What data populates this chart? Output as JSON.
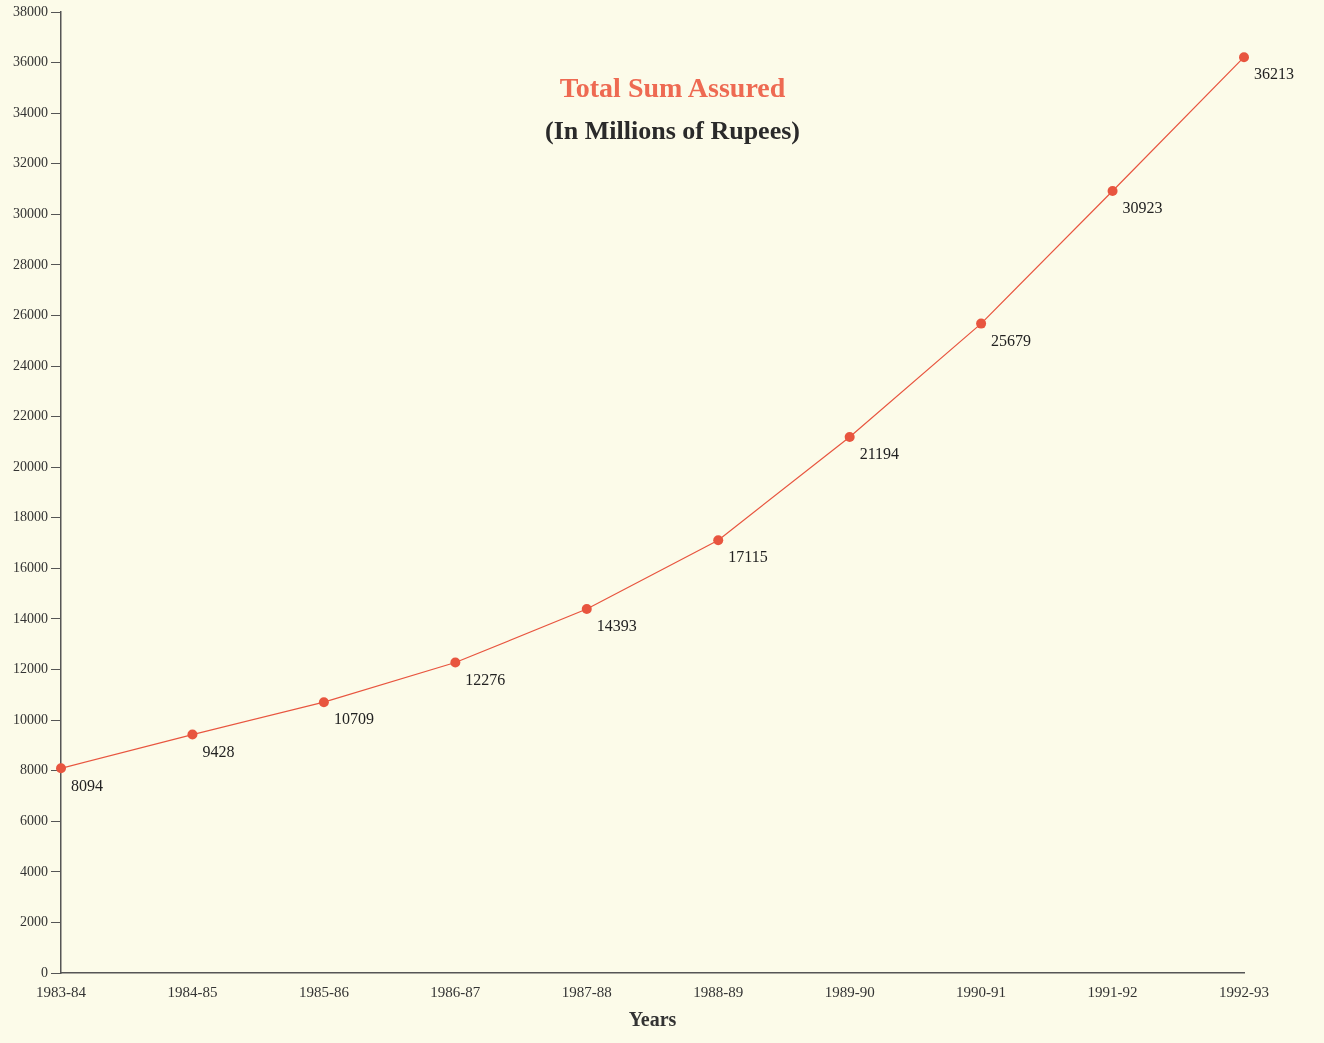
{
  "chart_data": {
    "type": "line",
    "title": "Total Sum Assured",
    "subtitle": "(In Millions of Rupees)",
    "xlabel": "Years",
    "categories": [
      "1983-84",
      "1984-85",
      "1985-86",
      "1986-87",
      "1987-88",
      "1988-89",
      "1989-90",
      "1990-91",
      "1991-92",
      "1992-93"
    ],
    "series": [
      {
        "color": "#e8553f",
        "values": [
          8094,
          9428,
          10709,
          12276,
          14393,
          17115,
          21194,
          25679,
          30923,
          36213
        ]
      }
    ],
    "ylim": [
      0,
      38000
    ],
    "yticks": [
      0,
      2000,
      4000,
      6000,
      8000,
      10000,
      12000,
      14000,
      16000,
      18000,
      20000,
      22000,
      24000,
      26000,
      28000,
      30000,
      32000,
      34000,
      36000,
      38000
    ],
    "grid": false,
    "legend": false,
    "marker": "circle",
    "line_style": "solid",
    "data_labels": true
  }
}
